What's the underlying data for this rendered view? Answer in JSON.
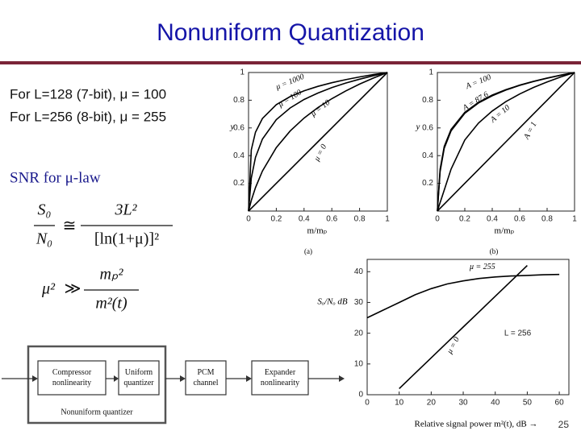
{
  "title": "Nonuniform Quantization",
  "intro_lines": [
    "For L=128 (7-bit), μ = 100",
    "For L=256 (8-bit), μ = 255"
  ],
  "snr_heading": "SNR for μ-law",
  "equations": [
    {
      "lhs_num": "S₀",
      "lhs_den": "N₀",
      "relation": "≅",
      "rhs_num": "3L²",
      "rhs_den": "[ln(1+μ)]²"
    },
    {
      "lhs": "μ²",
      "relation": "≫",
      "rhs_num": "mₚ²",
      "rhs_den": "m²(t)"
    }
  ],
  "diagram": {
    "blocks": [
      "Compressor nonlinearity",
      "Uniform quantizer",
      "PCM channel",
      "Expander nonlinearity"
    ],
    "group_label": "Nonuniform quantizer"
  },
  "page_number": "25",
  "chart_data": [
    {
      "type": "line",
      "caption": "(a)",
      "x_label": "m/mₚ",
      "y_label": "y",
      "x": [
        0,
        0.02,
        0.05,
        0.1,
        0.2,
        0.3,
        0.4,
        0.5,
        0.6,
        0.7,
        0.8,
        0.9,
        1
      ],
      "series": [
        {
          "name": "μ = 1000",
          "color": "#000000",
          "values": [
            0,
            0.441,
            0.569,
            0.668,
            0.768,
            0.826,
            0.868,
            0.9,
            0.926,
            0.948,
            0.968,
            0.985,
            1
          ]
        },
        {
          "name": "μ = 100",
          "color": "#000000",
          "values": [
            0,
            0.238,
            0.388,
            0.52,
            0.66,
            0.744,
            0.805,
            0.852,
            0.891,
            0.924,
            0.952,
            0.977,
            1
          ]
        },
        {
          "name": "μ = 10",
          "color": "#000000",
          "values": [
            0,
            0.076,
            0.169,
            0.289,
            0.458,
            0.578,
            0.671,
            0.747,
            0.811,
            0.867,
            0.916,
            0.96,
            1
          ]
        },
        {
          "name": "μ = 0",
          "color": "#000000",
          "values": [
            0,
            0.02,
            0.05,
            0.1,
            0.2,
            0.3,
            0.4,
            0.5,
            0.6,
            0.7,
            0.8,
            0.9,
            1
          ]
        }
      ],
      "xlim": [
        0,
        1
      ],
      "ylim": [
        0,
        1
      ],
      "xticks": [
        0,
        0.2,
        0.4,
        0.6,
        0.8,
        1
      ],
      "yticks": [
        0.2,
        0.4,
        0.6,
        0.8,
        1
      ]
    },
    {
      "type": "line",
      "caption": "(b)",
      "x_label": "m/mₚ",
      "y_label": "y",
      "x": [
        0,
        0.02,
        0.05,
        0.1,
        0.2,
        0.3,
        0.4,
        0.5,
        0.6,
        0.7,
        0.8,
        0.9,
        1
      ],
      "series": [
        {
          "name": "A = 100",
          "color": "#000000",
          "values": [
            0,
            0.302,
            0.466,
            0.589,
            0.713,
            0.785,
            0.837,
            0.876,
            0.909,
            0.936,
            0.96,
            0.981,
            1
          ]
        },
        {
          "name": "A = 87.6",
          "color": "#000000",
          "values": [
            0,
            0.285,
            0.453,
            0.579,
            0.706,
            0.78,
            0.832,
            0.873,
            0.907,
            0.935,
            0.959,
            0.981,
            1
          ]
        },
        {
          "name": "A = 10",
          "color": "#000000",
          "values": [
            0,
            0.061,
            0.151,
            0.303,
            0.513,
            0.635,
            0.722,
            0.79,
            0.845,
            0.892,
            0.932,
            0.968,
            1
          ]
        },
        {
          "name": "A = 1",
          "color": "#000000",
          "values": [
            0,
            0.02,
            0.05,
            0.1,
            0.2,
            0.3,
            0.4,
            0.5,
            0.6,
            0.7,
            0.8,
            0.9,
            1
          ]
        }
      ],
      "xlim": [
        0,
        1
      ],
      "ylim": [
        0,
        1
      ],
      "xticks": [
        0,
        0.2,
        0.4,
        0.6,
        0.8,
        1
      ],
      "yticks": [
        0.2,
        0.4,
        0.6,
        0.8,
        1
      ]
    },
    {
      "type": "line",
      "x_label": "Relative signal power m²(t), dB →",
      "y_label": "Sₒ/Nₒ dB",
      "annotation": "L = 256",
      "x": [
        0,
        5,
        10,
        15,
        20,
        25,
        30,
        35,
        40,
        45,
        50,
        55,
        60
      ],
      "series": [
        {
          "name": "μ = 255",
          "color": "#000000",
          "values": [
            25,
            27.5,
            30,
            32.5,
            34.5,
            36,
            37,
            37.8,
            38.3,
            38.6,
            38.8,
            39,
            39.1
          ]
        },
        {
          "name": "μ = 0",
          "color": "#000000",
          "values": [
            null,
            null,
            2,
            7,
            12,
            17,
            22,
            27,
            32,
            37,
            42,
            null,
            null
          ]
        }
      ],
      "xlim": [
        0,
        63
      ],
      "ylim": [
        0,
        44
      ],
      "xticks": [
        0,
        10,
        20,
        30,
        40,
        50,
        60
      ],
      "yticks": [
        0,
        10,
        20,
        30,
        40
      ]
    }
  ]
}
